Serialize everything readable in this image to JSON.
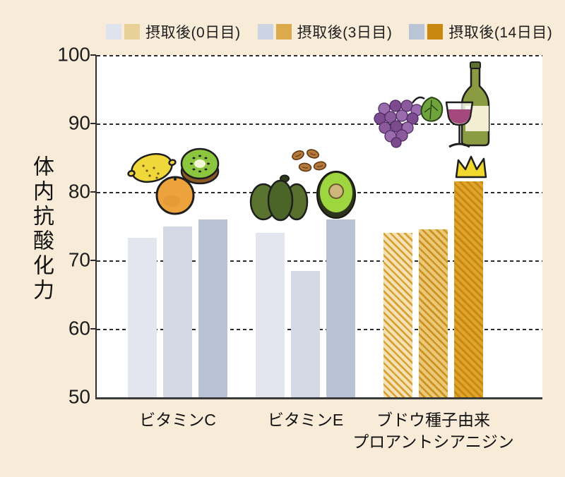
{
  "legend": {
    "items": [
      {
        "label": "摂取後(0日目)",
        "vitamin_color": "#dfe3ee",
        "polyphenol_color": "#e9d099"
      },
      {
        "label": "摂取後(3日目)",
        "vitamin_color": "#ccd3e2",
        "polyphenol_color": "#dcaa4a"
      },
      {
        "label": "摂取後(14日目)",
        "vitamin_color": "#bac4d7",
        "polyphenol_color": "#c9880e"
      }
    ]
  },
  "chart_data": {
    "type": "bar",
    "title": "",
    "ylabel": "体内抗酸化力",
    "xlabel": "",
    "ylim": [
      50,
      100
    ],
    "yticks": [
      100,
      90,
      80,
      70,
      60,
      50
    ],
    "grid": "horizontal-dashed",
    "legend_position": "top",
    "categories": [
      "ビタミンC",
      "ビタミンE",
      "ブドウ種子由来\nプロアントシアニジン"
    ],
    "series": [
      {
        "name": "摂取後(0日目)",
        "values": [
          73.3,
          74.0,
          74.0
        ]
      },
      {
        "name": "摂取後(3日目)",
        "values": [
          75.0,
          68.5,
          74.5
        ]
      },
      {
        "name": "摂取後(14日目)",
        "values": [
          76.0,
          76.0,
          81.5
        ]
      }
    ],
    "annotations": [
      "crown marker on highest bar (ブドウ種子由来 14日目)"
    ]
  },
  "colors": {
    "page_bg": "#f8ecd9",
    "plot_bg": "#ffffff",
    "axis": "#2e2e2e",
    "gridline": "#2b2b2b",
    "text": "#1d1d1d",
    "vitamin_bars": [
      "#e3e6ef",
      "#d4d9e6",
      "#bac3d6"
    ],
    "polyphenol_bars": [
      {
        "bg": "#f4e2b4",
        "stripe": "#d8a135"
      },
      {
        "bg": "#eac878",
        "stripe": "#cd9322"
      },
      {
        "bg": "#dfa42c",
        "stripe": "#c6870f"
      }
    ]
  },
  "illustrations": [
    "lemon",
    "kiwi",
    "orange",
    "almonds",
    "kabocha-squash",
    "avocado",
    "grapes",
    "grape-leaf",
    "wine-glass",
    "wine-bottle",
    "crown"
  ]
}
